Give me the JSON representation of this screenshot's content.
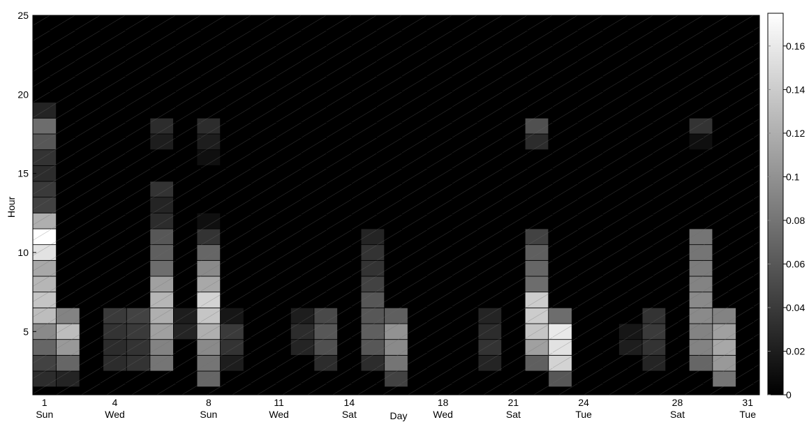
{
  "chart_data": {
    "type": "heatmap",
    "title": "",
    "xlabel": "Day",
    "ylabel": "Hour",
    "xlim": [
      0.5,
      31.5
    ],
    "ylim": [
      1,
      25
    ],
    "x_ticks": [
      {
        "day": 1,
        "num": "1",
        "dow": "Sun"
      },
      {
        "day": 4,
        "num": "4",
        "dow": "Wed"
      },
      {
        "day": 8,
        "num": "8",
        "dow": "Sun"
      },
      {
        "day": 11,
        "num": "11",
        "dow": "Wed"
      },
      {
        "day": 14,
        "num": "14",
        "dow": "Sat"
      },
      {
        "day": 18,
        "num": "18",
        "dow": "Wed"
      },
      {
        "day": 21,
        "num": "21",
        "dow": "Sat"
      },
      {
        "day": 24,
        "num": "24",
        "dow": "Tue"
      },
      {
        "day": 28,
        "num": "28",
        "dow": "Sat"
      },
      {
        "day": 31,
        "num": "31",
        "dow": "Tue"
      }
    ],
    "y_ticks": [
      "5",
      "10",
      "15",
      "20",
      "25"
    ],
    "colorbar": {
      "min": 0,
      "max": 0.175,
      "ticks": [
        "0",
        "0.02",
        "0.04",
        "0.06",
        "0.08",
        "0.1",
        "0.12",
        "0.14",
        "0.16"
      ],
      "colormap": "gray"
    },
    "cells": [
      {
        "day": 1,
        "hour": 2,
        "value": 0.03
      },
      {
        "day": 1,
        "hour": 3,
        "value": 0.045
      },
      {
        "day": 1,
        "hour": 4,
        "value": 0.07
      },
      {
        "day": 1,
        "hour": 5,
        "value": 0.095
      },
      {
        "day": 1,
        "hour": 6,
        "value": 0.13
      },
      {
        "day": 1,
        "hour": 7,
        "value": 0.135
      },
      {
        "day": 1,
        "hour": 8,
        "value": 0.125
      },
      {
        "day": 1,
        "hour": 9,
        "value": 0.115
      },
      {
        "day": 1,
        "hour": 10,
        "value": 0.155
      },
      {
        "day": 1,
        "hour": 11,
        "value": 0.175
      },
      {
        "day": 1,
        "hour": 12,
        "value": 0.12
      },
      {
        "day": 1,
        "hour": 13,
        "value": 0.045
      },
      {
        "day": 1,
        "hour": 14,
        "value": 0.04
      },
      {
        "day": 1,
        "hour": 15,
        "value": 0.03
      },
      {
        "day": 1,
        "hour": 16,
        "value": 0.035
      },
      {
        "day": 1,
        "hour": 17,
        "value": 0.06
      },
      {
        "day": 1,
        "hour": 18,
        "value": 0.075
      },
      {
        "day": 1,
        "hour": 19,
        "value": 0.025
      },
      {
        "day": 2,
        "hour": 2,
        "value": 0.025
      },
      {
        "day": 2,
        "hour": 3,
        "value": 0.07
      },
      {
        "day": 2,
        "hour": 4,
        "value": 0.105
      },
      {
        "day": 2,
        "hour": 5,
        "value": 0.13
      },
      {
        "day": 2,
        "hour": 6,
        "value": 0.09
      },
      {
        "day": 4,
        "hour": 3,
        "value": 0.03
      },
      {
        "day": 4,
        "hour": 4,
        "value": 0.03
      },
      {
        "day": 4,
        "hour": 5,
        "value": 0.035
      },
      {
        "day": 4,
        "hour": 6,
        "value": 0.04
      },
      {
        "day": 5,
        "hour": 3,
        "value": 0.035
      },
      {
        "day": 5,
        "hour": 4,
        "value": 0.035
      },
      {
        "day": 5,
        "hour": 5,
        "value": 0.04
      },
      {
        "day": 5,
        "hour": 6,
        "value": 0.045
      },
      {
        "day": 6,
        "hour": 3,
        "value": 0.08
      },
      {
        "day": 6,
        "hour": 4,
        "value": 0.09
      },
      {
        "day": 6,
        "hour": 5,
        "value": 0.11
      },
      {
        "day": 6,
        "hour": 6,
        "value": 0.12
      },
      {
        "day": 6,
        "hour": 7,
        "value": 0.125
      },
      {
        "day": 6,
        "hour": 8,
        "value": 0.11
      },
      {
        "day": 6,
        "hour": 9,
        "value": 0.075
      },
      {
        "day": 6,
        "hour": 10,
        "value": 0.065
      },
      {
        "day": 6,
        "hour": 11,
        "value": 0.06
      },
      {
        "day": 6,
        "hour": 12,
        "value": 0.03
      },
      {
        "day": 6,
        "hour": 13,
        "value": 0.025
      },
      {
        "day": 6,
        "hour": 14,
        "value": 0.035
      },
      {
        "day": 6,
        "hour": 17,
        "value": 0.02
      },
      {
        "day": 6,
        "hour": 18,
        "value": 0.03
      },
      {
        "day": 7,
        "hour": 5,
        "value": 0.025
      },
      {
        "day": 7,
        "hour": 6,
        "value": 0.02
      },
      {
        "day": 8,
        "hour": 2,
        "value": 0.07
      },
      {
        "day": 8,
        "hour": 3,
        "value": 0.08
      },
      {
        "day": 8,
        "hour": 4,
        "value": 0.095
      },
      {
        "day": 8,
        "hour": 5,
        "value": 0.12
      },
      {
        "day": 8,
        "hour": 6,
        "value": 0.135
      },
      {
        "day": 8,
        "hour": 7,
        "value": 0.145
      },
      {
        "day": 8,
        "hour": 8,
        "value": 0.115
      },
      {
        "day": 8,
        "hour": 9,
        "value": 0.095
      },
      {
        "day": 8,
        "hour": 10,
        "value": 0.07
      },
      {
        "day": 8,
        "hour": 11,
        "value": 0.035
      },
      {
        "day": 8,
        "hour": 12,
        "value": 0.01
      },
      {
        "day": 8,
        "hour": 16,
        "value": 0.01
      },
      {
        "day": 8,
        "hour": 17,
        "value": 0.02
      },
      {
        "day": 8,
        "hour": 18,
        "value": 0.03
      },
      {
        "day": 9,
        "hour": 3,
        "value": 0.02
      },
      {
        "day": 9,
        "hour": 4,
        "value": 0.035
      },
      {
        "day": 9,
        "hour": 5,
        "value": 0.04
      },
      {
        "day": 9,
        "hour": 6,
        "value": 0.015
      },
      {
        "day": 12,
        "hour": 4,
        "value": 0.025
      },
      {
        "day": 12,
        "hour": 5,
        "value": 0.03
      },
      {
        "day": 12,
        "hour": 6,
        "value": 0.02
      },
      {
        "day": 13,
        "hour": 3,
        "value": 0.03
      },
      {
        "day": 13,
        "hour": 4,
        "value": 0.055
      },
      {
        "day": 13,
        "hour": 5,
        "value": 0.06
      },
      {
        "day": 13,
        "hour": 6,
        "value": 0.05
      },
      {
        "day": 15,
        "hour": 3,
        "value": 0.03
      },
      {
        "day": 15,
        "hour": 4,
        "value": 0.06
      },
      {
        "day": 15,
        "hour": 5,
        "value": 0.065
      },
      {
        "day": 15,
        "hour": 6,
        "value": 0.06
      },
      {
        "day": 15,
        "hour": 7,
        "value": 0.06
      },
      {
        "day": 15,
        "hour": 8,
        "value": 0.045
      },
      {
        "day": 15,
        "hour": 9,
        "value": 0.035
      },
      {
        "day": 15,
        "hour": 10,
        "value": 0.035
      },
      {
        "day": 15,
        "hour": 11,
        "value": 0.025
      },
      {
        "day": 16,
        "hour": 2,
        "value": 0.045
      },
      {
        "day": 16,
        "hour": 3,
        "value": 0.08
      },
      {
        "day": 16,
        "hour": 4,
        "value": 0.095
      },
      {
        "day": 16,
        "hour": 5,
        "value": 0.1
      },
      {
        "day": 16,
        "hour": 6,
        "value": 0.065
      },
      {
        "day": 20,
        "hour": 3,
        "value": 0.025
      },
      {
        "day": 20,
        "hour": 4,
        "value": 0.035
      },
      {
        "day": 20,
        "hour": 5,
        "value": 0.03
      },
      {
        "day": 20,
        "hour": 6,
        "value": 0.025
      },
      {
        "day": 22,
        "hour": 3,
        "value": 0.065
      },
      {
        "day": 22,
        "hour": 4,
        "value": 0.11
      },
      {
        "day": 22,
        "hour": 5,
        "value": 0.135
      },
      {
        "day": 22,
        "hour": 6,
        "value": 0.14
      },
      {
        "day": 22,
        "hour": 7,
        "value": 0.14
      },
      {
        "day": 22,
        "hour": 8,
        "value": 0.075
      },
      {
        "day": 22,
        "hour": 9,
        "value": 0.07
      },
      {
        "day": 22,
        "hour": 10,
        "value": 0.065
      },
      {
        "day": 22,
        "hour": 11,
        "value": 0.045
      },
      {
        "day": 22,
        "hour": 17,
        "value": 0.03
      },
      {
        "day": 22,
        "hour": 18,
        "value": 0.055
      },
      {
        "day": 23,
        "hour": 2,
        "value": 0.06
      },
      {
        "day": 23,
        "hour": 3,
        "value": 0.145
      },
      {
        "day": 23,
        "hour": 4,
        "value": 0.155
      },
      {
        "day": 23,
        "hour": 5,
        "value": 0.16
      },
      {
        "day": 23,
        "hour": 6,
        "value": 0.075
      },
      {
        "day": 26,
        "hour": 4,
        "value": 0.02
      },
      {
        "day": 26,
        "hour": 5,
        "value": 0.015
      },
      {
        "day": 27,
        "hour": 3,
        "value": 0.025
      },
      {
        "day": 27,
        "hour": 4,
        "value": 0.035
      },
      {
        "day": 27,
        "hour": 5,
        "value": 0.04
      },
      {
        "day": 27,
        "hour": 6,
        "value": 0.035
      },
      {
        "day": 29,
        "hour": 3,
        "value": 0.07
      },
      {
        "day": 29,
        "hour": 4,
        "value": 0.09
      },
      {
        "day": 29,
        "hour": 5,
        "value": 0.09
      },
      {
        "day": 29,
        "hour": 6,
        "value": 0.095
      },
      {
        "day": 29,
        "hour": 7,
        "value": 0.095
      },
      {
        "day": 29,
        "hour": 8,
        "value": 0.09
      },
      {
        "day": 29,
        "hour": 9,
        "value": 0.085
      },
      {
        "day": 29,
        "hour": 10,
        "value": 0.08
      },
      {
        "day": 29,
        "hour": 11,
        "value": 0.08
      },
      {
        "day": 29,
        "hour": 17,
        "value": 0.01
      },
      {
        "day": 29,
        "hour": 18,
        "value": 0.035
      },
      {
        "day": 30,
        "hour": 2,
        "value": 0.08
      },
      {
        "day": 30,
        "hour": 3,
        "value": 0.105
      },
      {
        "day": 30,
        "hour": 4,
        "value": 0.115
      },
      {
        "day": 30,
        "hour": 5,
        "value": 0.11
      },
      {
        "day": 30,
        "hour": 6,
        "value": 0.09
      }
    ]
  }
}
